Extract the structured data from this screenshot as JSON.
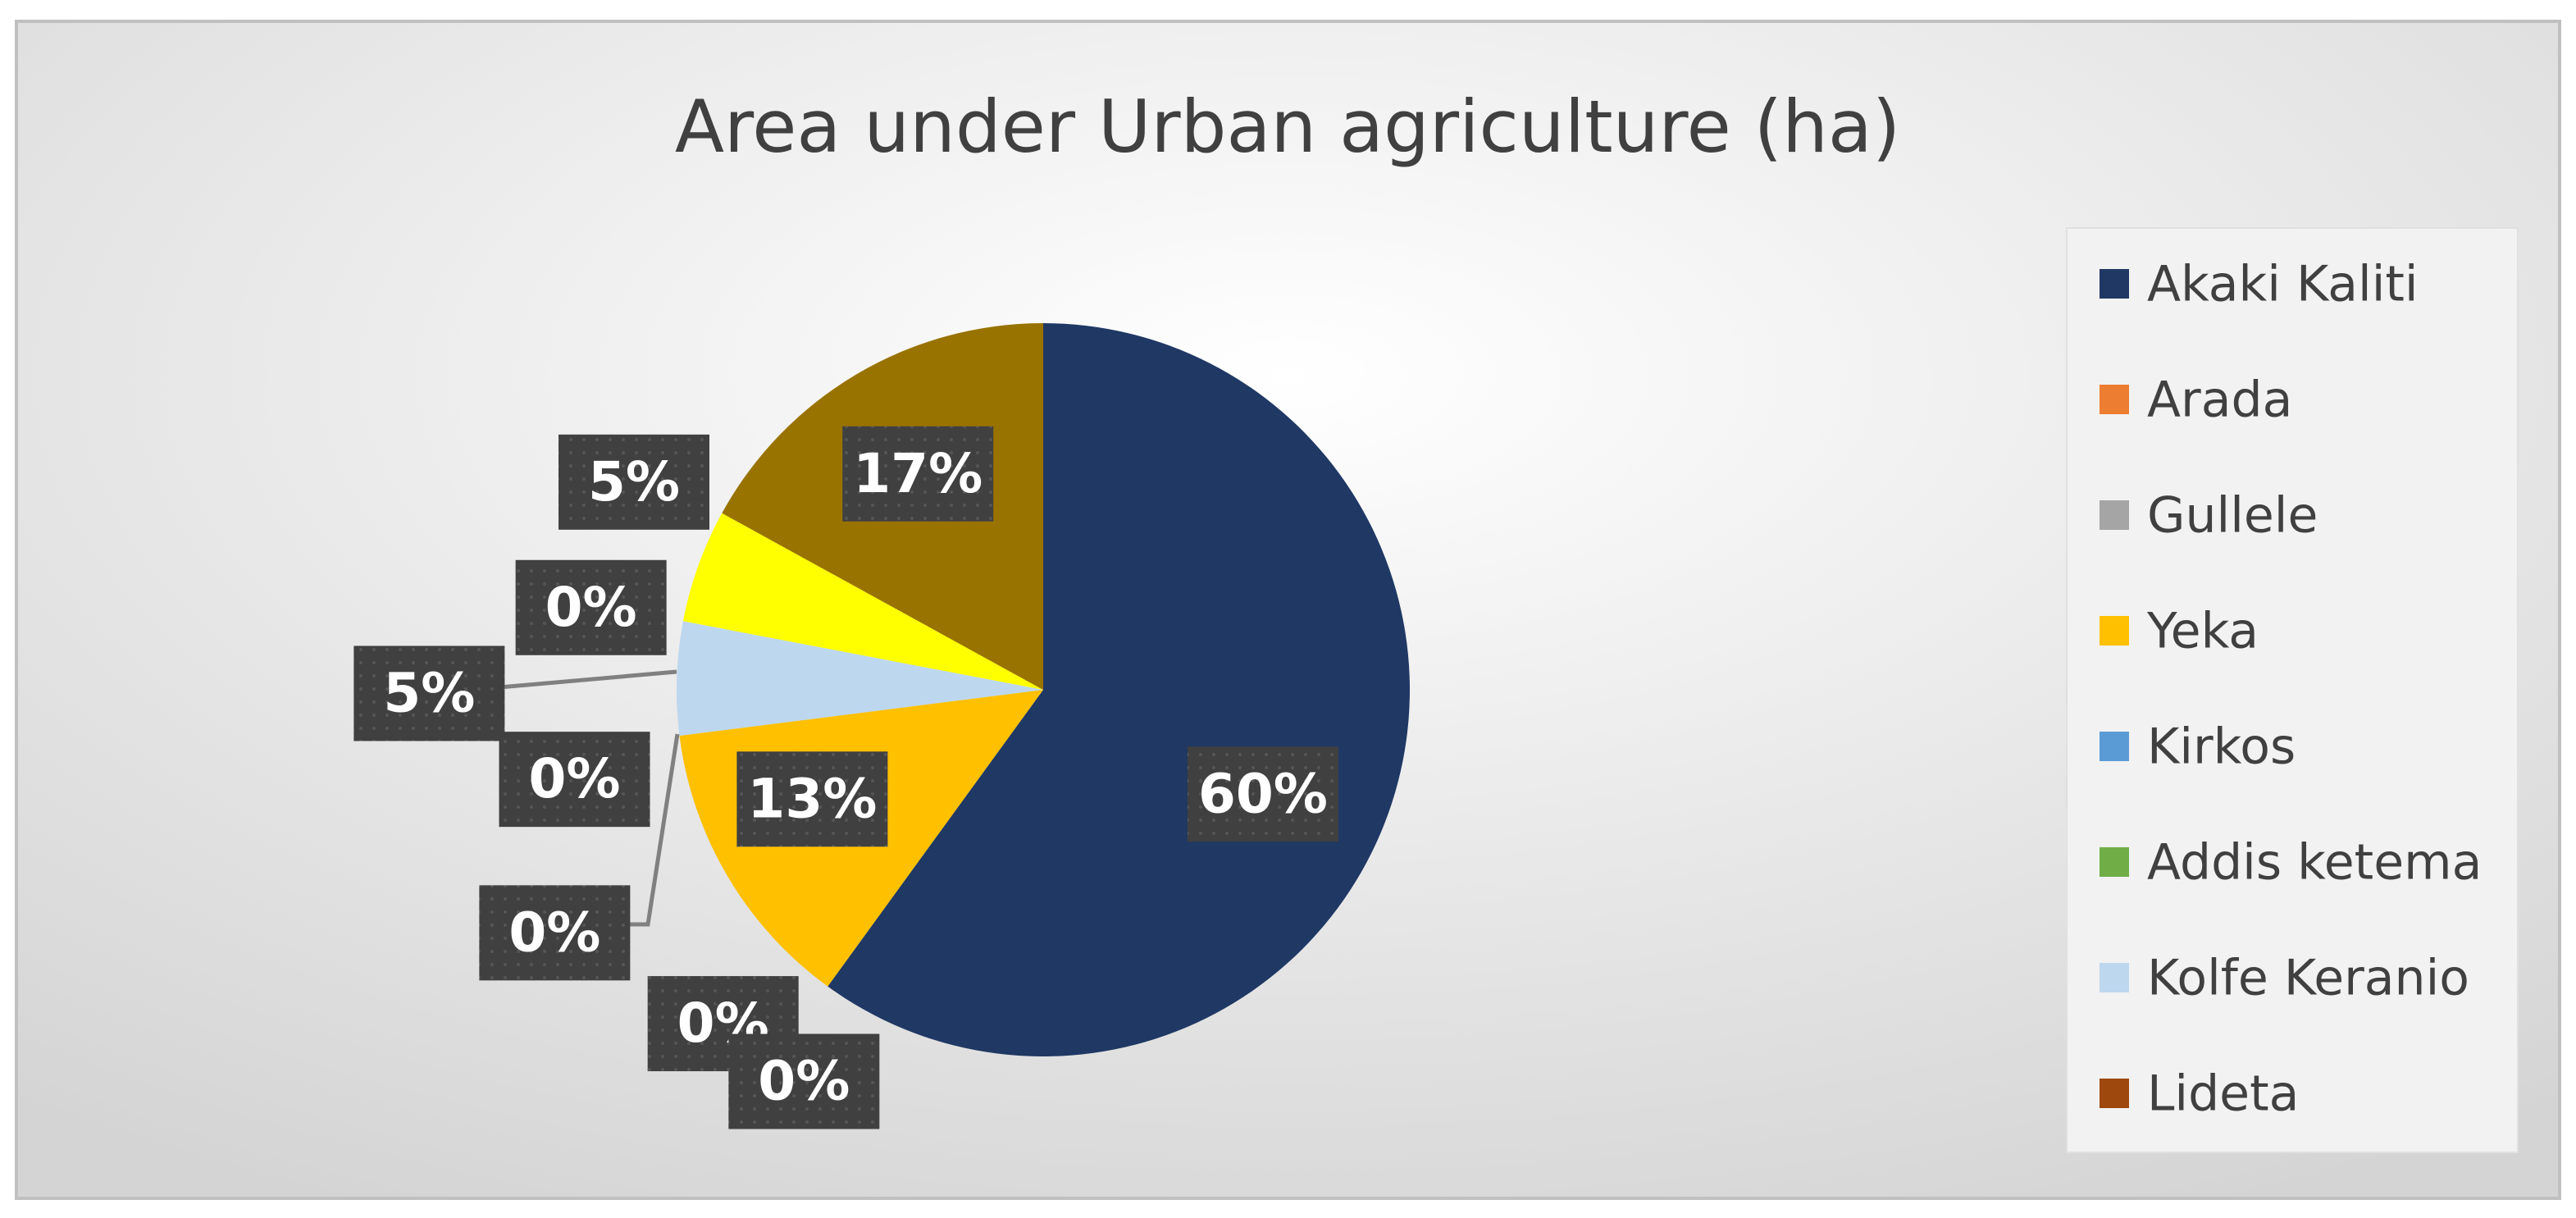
{
  "chart_data": {
    "type": "pie",
    "title": "Area under Urban agriculture (ha)",
    "categories": [
      "Akaki Kaliti",
      "Arada",
      "Gullele",
      "Yeka",
      "Kirkos",
      "Addis ketema",
      "Kolfe Keranio",
      "Lideta",
      null,
      null
    ],
    "values": [
      60,
      0,
      0,
      13,
      0,
      0,
      5,
      0,
      5,
      17
    ],
    "value_labels": [
      "60%",
      "0%",
      "0%",
      "13%",
      "0%",
      "0%",
      "5%",
      "0%",
      "5%",
      "17%"
    ],
    "colors": [
      "#1f3864",
      "#ed7d31",
      "#a5a5a5",
      "#ffc000",
      "#5b9bd5",
      "#70ad47",
      "#bdd7ee",
      "#9e480e",
      "#ffff00",
      "#997300"
    ],
    "legend": "right"
  }
}
